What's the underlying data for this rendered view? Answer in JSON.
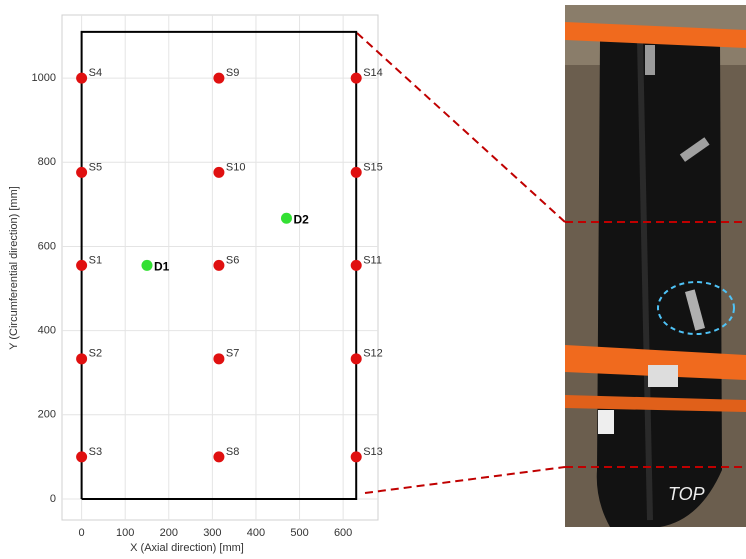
{
  "chart_data": {
    "type": "scatter",
    "x_label": "X (Axial direction) [mm]",
    "y_label": "Y (Circumferential direction) [mm]",
    "xlim": [
      -45,
      680
    ],
    "ylim": [
      -50,
      1150
    ],
    "xticks": [
      0,
      100,
      200,
      300,
      400,
      500,
      600
    ],
    "yticks": [
      0,
      200,
      400,
      600,
      800,
      1000
    ],
    "grid": true,
    "boundary": {
      "x": [
        0,
        630
      ],
      "y": [
        0,
        1110
      ]
    },
    "points": [
      {
        "label": "S1",
        "x": 0,
        "y": 555,
        "color": "#e01010"
      },
      {
        "label": "S2",
        "x": 0,
        "y": 333,
        "color": "#e01010"
      },
      {
        "label": "S3",
        "x": 0,
        "y": 100,
        "color": "#e01010"
      },
      {
        "label": "S4",
        "x": 0,
        "y": 1000,
        "color": "#e01010"
      },
      {
        "label": "S5",
        "x": 0,
        "y": 776,
        "color": "#e01010"
      },
      {
        "label": "S6",
        "x": 315,
        "y": 555,
        "color": "#e01010"
      },
      {
        "label": "S7",
        "x": 315,
        "y": 333,
        "color": "#e01010"
      },
      {
        "label": "S8",
        "x": 315,
        "y": 100,
        "color": "#e01010"
      },
      {
        "label": "S9",
        "x": 315,
        "y": 1000,
        "color": "#e01010"
      },
      {
        "label": "S10",
        "x": 315,
        "y": 776,
        "color": "#e01010"
      },
      {
        "label": "S11",
        "x": 630,
        "y": 555,
        "color": "#e01010"
      },
      {
        "label": "S12",
        "x": 630,
        "y": 333,
        "color": "#e01010"
      },
      {
        "label": "S13",
        "x": 630,
        "y": 100,
        "color": "#e01010"
      },
      {
        "label": "S14",
        "x": 630,
        "y": 1000,
        "color": "#e01010"
      },
      {
        "label": "S15",
        "x": 630,
        "y": 776,
        "color": "#e01010"
      },
      {
        "label": "D1",
        "x": 150,
        "y": 555,
        "color": "#33e033",
        "bold": true
      },
      {
        "label": "D2",
        "x": 470,
        "y": 667,
        "color": "#33e033",
        "bold": true
      }
    ]
  },
  "photo": {
    "annotation": "TOP"
  }
}
